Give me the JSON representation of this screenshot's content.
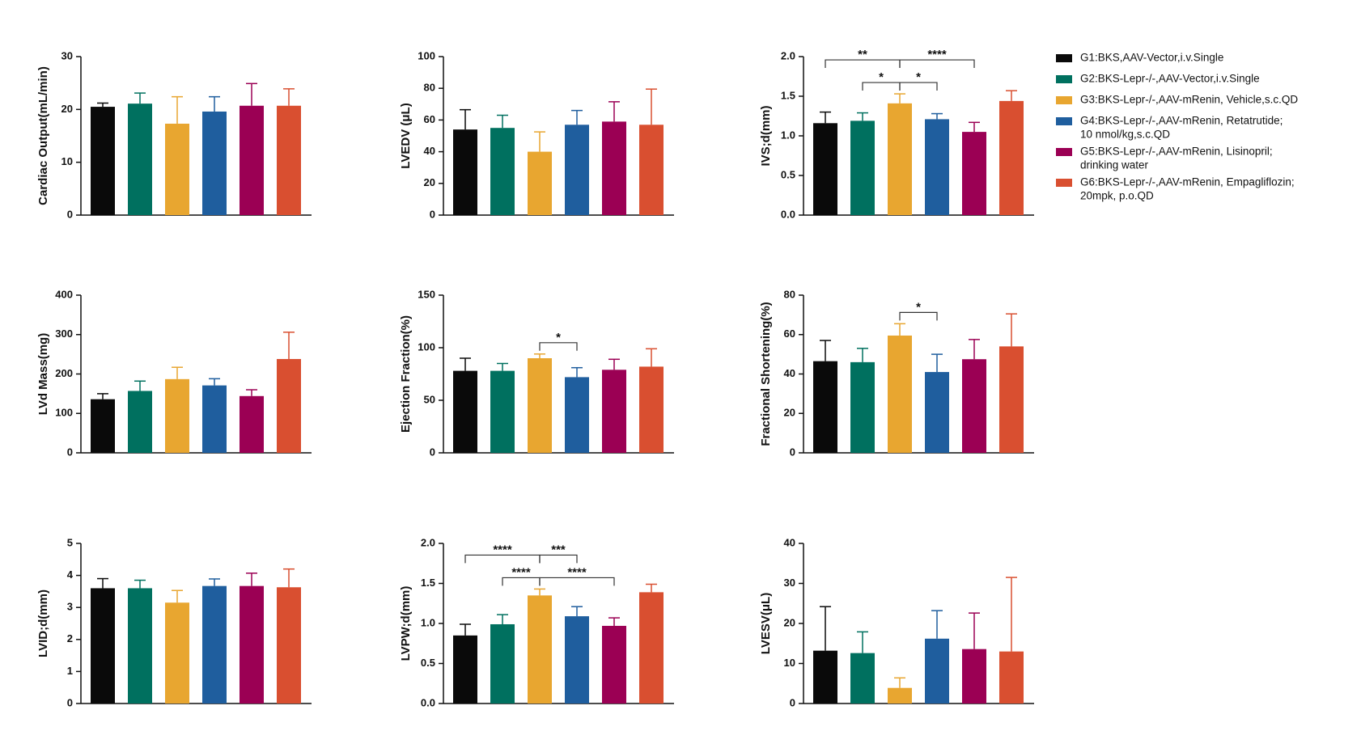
{
  "legend": {
    "items": [
      {
        "label": [
          "G1:BKS,AAV-Vector,i.v.Single"
        ],
        "color": "#0a0a0a"
      },
      {
        "label": [
          "G2:BKS-Lepr-/-,AAV-Vector,i.v.Single"
        ],
        "color": "#00705f"
      },
      {
        "label": [
          "G3:BKS-Lepr-/-,AAV-mRenin,  Vehicle,s.c.QD"
        ],
        "color": "#e8a630"
      },
      {
        "label": [
          "G4:BKS-Lepr-/-,AAV-mRenin,  Retatrutide;",
          "10 nmol/kg,s.c.QD"
        ],
        "color": "#1f5e9e"
      },
      {
        "label": [
          "G5:BKS-Lepr-/-,AAV-mRenin,  Lisinopril;",
          "drinking water"
        ],
        "color": "#9b0054"
      },
      {
        "label": [
          "G6:BKS-Lepr-/-,AAV-mRenin,  Empagliflozin;",
          "20mpk, p.o.QD"
        ],
        "color": "#d94f30"
      }
    ]
  },
  "chart_data": [
    {
      "type": "bar",
      "y_label": "Cardiac Output(mL/min)",
      "values": [
        20.5,
        21.1,
        17.3,
        19.6,
        20.7,
        20.7
      ],
      "errors": [
        0.7,
        2.0,
        5.1,
        2.8,
        4.2,
        3.2
      ],
      "ylim": [
        0,
        30
      ],
      "yticks": [
        0,
        10,
        20,
        30
      ],
      "comparisons": []
    },
    {
      "type": "bar",
      "y_label": "LVEDV (μL)",
      "values": [
        54,
        55,
        40,
        57,
        59,
        57
      ],
      "errors": [
        12.5,
        8,
        12.5,
        9,
        12.5,
        22.5
      ],
      "ylim": [
        0,
        100
      ],
      "yticks": [
        0,
        20,
        40,
        60,
        80,
        100
      ],
      "comparisons": []
    },
    {
      "type": "bar",
      "y_label": "IVS;d(mm)",
      "values": [
        1.16,
        1.19,
        1.41,
        1.21,
        1.05,
        1.44
      ],
      "errors": [
        0.14,
        0.1,
        0.12,
        0.07,
        0.12,
        0.13
      ],
      "ylim": [
        0,
        2
      ],
      "yticks": [
        {
          "value": 0,
          "label": "0.0"
        },
        0.5,
        {
          "value": 1,
          "label": "1.0"
        },
        1.5,
        {
          "value": 2,
          "label": "2.0"
        }
      ],
      "comparisons": [
        {
          "groups": [
            1,
            2
          ],
          "label": "*"
        },
        {
          "groups": [
            2,
            3
          ],
          "label": "*"
        },
        {
          "groups": [
            0,
            2
          ],
          "label": "**"
        },
        {
          "groups": [
            2,
            4
          ],
          "label": "****"
        }
      ]
    },
    {
      "type": "bar",
      "y_label": "LVd Mass(mg)",
      "values": [
        136,
        157,
        187,
        171,
        144,
        238
      ],
      "errors": [
        14,
        25,
        30,
        17,
        16,
        68
      ],
      "ylim": [
        0,
        400
      ],
      "yticks": [
        0,
        100,
        200,
        300,
        400
      ],
      "comparisons": []
    },
    {
      "type": "bar",
      "y_label": "Ejection Fraction(%)",
      "values": [
        78,
        78,
        90,
        72,
        79,
        82
      ],
      "errors": [
        12,
        7,
        4,
        9,
        10,
        17
      ],
      "ylim": [
        0,
        150
      ],
      "yticks": [
        0,
        50,
        100,
        150
      ],
      "comparisons": [
        {
          "groups": [
            2,
            3
          ],
          "label": "*"
        }
      ]
    },
    {
      "type": "bar",
      "y_label": "Fractional Shortening(%)",
      "values": [
        46.5,
        46,
        59.5,
        41,
        47.5,
        54
      ],
      "errors": [
        10.5,
        7,
        6,
        9,
        10,
        16.5
      ],
      "ylim": [
        0,
        80
      ],
      "yticks": [
        0,
        20,
        40,
        60,
        80
      ],
      "comparisons": [
        {
          "groups": [
            2,
            3
          ],
          "label": "*"
        }
      ]
    },
    {
      "type": "bar",
      "y_label": "LVID;d(mm)",
      "values": [
        3.6,
        3.6,
        3.15,
        3.67,
        3.67,
        3.63
      ],
      "errors": [
        0.3,
        0.25,
        0.38,
        0.22,
        0.4,
        0.57
      ],
      "ylim": [
        0,
        5
      ],
      "yticks": [
        0,
        1,
        2,
        3,
        4,
        5
      ],
      "comparisons": []
    },
    {
      "type": "bar",
      "y_label": "LVPW;d(mm)",
      "values": [
        0.85,
        0.99,
        1.35,
        1.09,
        0.97,
        1.39
      ],
      "errors": [
        0.14,
        0.12,
        0.08,
        0.12,
        0.1,
        0.1
      ],
      "ylim": [
        0,
        2
      ],
      "yticks": [
        {
          "value": 0,
          "label": "0.0"
        },
        0.5,
        {
          "value": 1,
          "label": "1.0"
        },
        1.5,
        {
          "value": 2,
          "label": "2.0"
        }
      ],
      "comparisons": [
        {
          "groups": [
            1,
            2
          ],
          "label": "****"
        },
        {
          "groups": [
            2,
            4
          ],
          "label": "****"
        },
        {
          "groups": [
            0,
            2
          ],
          "label": "****"
        },
        {
          "groups": [
            2,
            3
          ],
          "label": "***"
        }
      ]
    },
    {
      "type": "bar",
      "y_label": "LVESV(μL)",
      "values": [
        13.2,
        12.6,
        3.9,
        16.2,
        13.6,
        13
      ],
      "errors": [
        11,
        5.3,
        2.5,
        7,
        9,
        18.5
      ],
      "ylim": [
        0,
        40
      ],
      "yticks": [
        0,
        10,
        20,
        30,
        40
      ],
      "comparisons": []
    }
  ]
}
